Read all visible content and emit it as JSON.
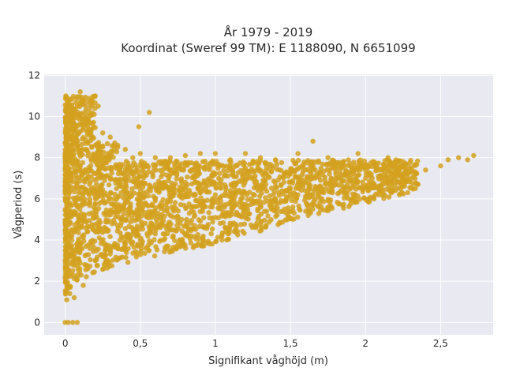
{
  "chart_data": {
    "type": "scatter",
    "title_line1": "År 1979 - 2019",
    "title_line2": "Koordinat (Sweref 99 TM): E 1188090, N 6651099",
    "xlabel": "Signifikant våghöjd (m)",
    "ylabel": "Vågperiod (s)",
    "xlim": [
      -0.14,
      2.85
    ],
    "ylim": [
      -0.6,
      12.05
    ],
    "xticks": [
      {
        "value": 0,
        "label": "0"
      },
      {
        "value": 0.5,
        "label": "0,5"
      },
      {
        "value": 1,
        "label": "1"
      },
      {
        "value": 1.5,
        "label": "1,5"
      },
      {
        "value": 2,
        "label": "2"
      },
      {
        "value": 2.5,
        "label": "2,5"
      }
    ],
    "yticks": [
      {
        "value": 0,
        "label": "0"
      },
      {
        "value": 2,
        "label": "2"
      },
      {
        "value": 4,
        "label": "4"
      },
      {
        "value": 6,
        "label": "6"
      },
      {
        "value": 8,
        "label": "8"
      },
      {
        "value": 10,
        "label": "10"
      },
      {
        "value": 12,
        "label": "12"
      }
    ],
    "grid": true,
    "colors": {
      "marker": "#d4a11f",
      "plot_background": "#e8e9f1",
      "grid": "#ffffff"
    },
    "points": [
      [
        0.0,
        0.0
      ],
      [
        0.02,
        0.0
      ],
      [
        0.05,
        0.0
      ],
      [
        0.08,
        0.0
      ],
      [
        0.01,
        1.1
      ],
      [
        0.03,
        1.4
      ],
      [
        0.06,
        1.2
      ],
      [
        0.12,
        1.8
      ],
      [
        0.08,
        2.2
      ],
      [
        0.15,
        2.6
      ],
      [
        0.2,
        3.0
      ],
      [
        0.25,
        3.2
      ],
      [
        0.3,
        3.5
      ],
      [
        0.35,
        3.6
      ],
      [
        0.4,
        3.8
      ],
      [
        0.45,
        3.9
      ],
      [
        0.5,
        4.0
      ],
      [
        0.55,
        4.2
      ],
      [
        0.6,
        4.3
      ],
      [
        0.7,
        4.5
      ],
      [
        0.8,
        4.7
      ],
      [
        0.9,
        4.9
      ],
      [
        1.0,
        5.1
      ],
      [
        1.1,
        5.3
      ],
      [
        1.2,
        5.5
      ],
      [
        1.3,
        5.7
      ],
      [
        1.4,
        6.0
      ],
      [
        1.5,
        6.2
      ],
      [
        1.6,
        6.4
      ],
      [
        1.7,
        6.5
      ],
      [
        1.8,
        6.7
      ],
      [
        1.9,
        6.9
      ],
      [
        2.0,
        7.0
      ],
      [
        2.1,
        7.1
      ],
      [
        2.2,
        7.2
      ],
      [
        2.3,
        7.3
      ],
      [
        2.4,
        7.4
      ],
      [
        2.5,
        7.6
      ],
      [
        2.55,
        7.9
      ],
      [
        2.62,
        8.0
      ],
      [
        2.68,
        7.9
      ],
      [
        2.72,
        8.1
      ],
      [
        0.05,
        9.5
      ],
      [
        0.08,
        10.5
      ],
      [
        0.1,
        11.2
      ],
      [
        0.12,
        10.8
      ],
      [
        0.15,
        9.8
      ],
      [
        0.2,
        11.0
      ],
      [
        0.22,
        10.5
      ],
      [
        0.25,
        9.2
      ],
      [
        0.3,
        9.0
      ],
      [
        0.35,
        8.6
      ],
      [
        0.4,
        8.4
      ],
      [
        0.45,
        8.0
      ],
      [
        0.5,
        8.2
      ],
      [
        0.6,
        8.0
      ],
      [
        0.7,
        8.0
      ],
      [
        0.8,
        8.1
      ],
      [
        0.9,
        8.2
      ],
      [
        1.0,
        8.2
      ],
      [
        1.1,
        7.9
      ],
      [
        1.2,
        8.2
      ],
      [
        1.3,
        8.0
      ],
      [
        1.4,
        7.9
      ],
      [
        1.55,
        8.2
      ],
      [
        1.65,
        8.8
      ],
      [
        1.75,
        8.0
      ],
      [
        1.85,
        7.8
      ],
      [
        1.95,
        8.2
      ],
      [
        2.05,
        7.8
      ],
      [
        2.15,
        8.0
      ],
      [
        0.56,
        10.2
      ],
      [
        0.49,
        9.5
      ],
      [
        0.1,
        5.0
      ],
      [
        0.2,
        5.5
      ],
      [
        0.3,
        6.0
      ],
      [
        0.4,
        5.8
      ],
      [
        0.5,
        6.2
      ],
      [
        0.6,
        5.9
      ],
      [
        0.7,
        6.0
      ],
      [
        0.8,
        6.1
      ],
      [
        0.9,
        6.3
      ],
      [
        1.0,
        6.2
      ],
      [
        1.1,
        6.4
      ],
      [
        1.2,
        6.3
      ],
      [
        1.3,
        6.5
      ],
      [
        1.4,
        6.6
      ],
      [
        1.5,
        6.5
      ],
      [
        1.6,
        6.8
      ],
      [
        1.7,
        6.9
      ],
      [
        1.8,
        7.0
      ]
    ]
  }
}
